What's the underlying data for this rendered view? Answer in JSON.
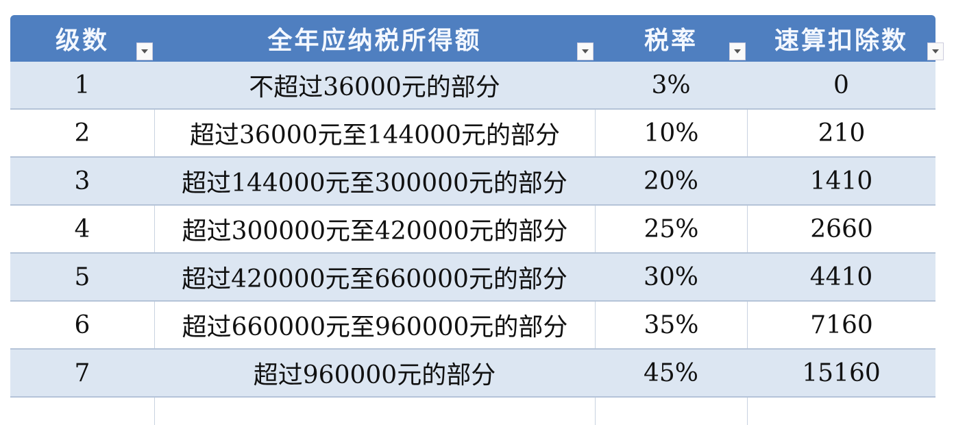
{
  "headers": [
    "级数",
    "全年应纳税所得额",
    "税率",
    "速算扣除数"
  ],
  "rows": [
    {
      "level": "1",
      "income": "不超过36000元的部分",
      "rate": "3%",
      "deduction": "0"
    },
    {
      "level": "2",
      "income": "超过36000元至144000元的部分",
      "rate": "10%",
      "deduction": "210"
    },
    {
      "level": "3",
      "income": "超过144000元至300000元的部分",
      "rate": "20%",
      "deduction": "1410"
    },
    {
      "level": "4",
      "income": "超过300000元至420000元的部分",
      "rate": "25%",
      "deduction": "2660"
    },
    {
      "level": "5",
      "income": "超过420000元至660000元的部分",
      "rate": "30%",
      "deduction": "4410"
    },
    {
      "level": "6",
      "income": "超过660000元至960000元的部分",
      "rate": "35%",
      "deduction": "7160"
    },
    {
      "level": "7",
      "income": "超过960000元的部分",
      "rate": "45%",
      "deduction": "15160"
    }
  ],
  "colors": {
    "header": "#4f7fc0",
    "band": "#dce6f2"
  }
}
